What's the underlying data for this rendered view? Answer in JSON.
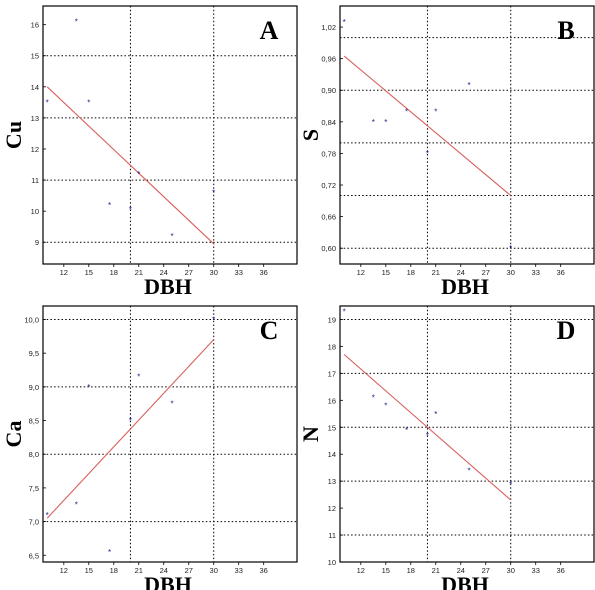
{
  "chart_data": [
    {
      "type": "scatter",
      "panel_label": "A",
      "xlabel": "DBH",
      "ylabel": "Cu",
      "xlim": [
        9.5,
        40
      ],
      "ylim": [
        8.3,
        16.6
      ],
      "x_ticks": [
        12,
        15,
        18,
        21,
        24,
        27,
        30,
        33,
        36
      ],
      "x_tick_labels": [
        "12",
        "15",
        "18",
        "21",
        "24",
        "27",
        "30",
        "33",
        "36"
      ],
      "y_ticks": [
        9,
        10,
        11,
        12,
        13,
        14,
        15,
        16
      ],
      "y_tick_labels": [
        "9",
        "10",
        "11",
        "12",
        "13",
        "14",
        "15",
        "16"
      ],
      "x_grid": [
        20,
        30
      ],
      "y_grid": [
        9,
        11,
        13,
        15
      ],
      "points": [
        {
          "x": 10,
          "y": 13.5
        },
        {
          "x": 13.5,
          "y": 16.1
        },
        {
          "x": 15,
          "y": 13.5
        },
        {
          "x": 17.5,
          "y": 10.2
        },
        {
          "x": 20,
          "y": 10.05
        },
        {
          "x": 21,
          "y": 11.2
        },
        {
          "x": 25,
          "y": 9.2
        },
        {
          "x": 30,
          "y": 10.6
        }
      ],
      "fit_line": [
        {
          "x": 10,
          "y": 14
        },
        {
          "x": 30,
          "y": 8.95
        }
      ]
    },
    {
      "type": "scatter",
      "panel_label": "B",
      "xlabel": "DBH",
      "ylabel": "S",
      "xlim": [
        9.5,
        40
      ],
      "ylim": [
        0.57,
        1.06
      ],
      "x_ticks": [
        12,
        15,
        18,
        21,
        24,
        27,
        30,
        33,
        36
      ],
      "x_tick_labels": [
        "12",
        "15",
        "18",
        "21",
        "24",
        "27",
        "30",
        "33",
        "36"
      ],
      "y_ticks": [
        0.6,
        0.66,
        0.72,
        0.78,
        0.84,
        0.9,
        0.96,
        1.02
      ],
      "y_tick_labels": [
        "0,60",
        "0,66",
        "0,72",
        "0,78",
        "0,84",
        "0,90",
        "0,96",
        "1,02"
      ],
      "x_grid": [
        20,
        30
      ],
      "y_grid": [
        0.6,
        0.7,
        0.8,
        0.9,
        1.0
      ],
      "points": [
        {
          "x": 10,
          "y": 1.03
        },
        {
          "x": 13.5,
          "y": 0.84
        },
        {
          "x": 15,
          "y": 0.84
        },
        {
          "x": 17.5,
          "y": 0.86
        },
        {
          "x": 20,
          "y": 0.78
        },
        {
          "x": 21,
          "y": 0.86
        },
        {
          "x": 25,
          "y": 0.91
        },
        {
          "x": 30,
          "y": 0.6
        }
      ],
      "fit_line": [
        {
          "x": 10,
          "y": 0.965
        },
        {
          "x": 30,
          "y": 0.7
        }
      ]
    },
    {
      "type": "scatter",
      "panel_label": "C",
      "xlabel": "DBH",
      "ylabel": "Ca",
      "xlim": [
        9.5,
        40
      ],
      "ylim": [
        6.4,
        10.2
      ],
      "x_ticks": [
        12,
        15,
        18,
        21,
        24,
        27,
        30,
        33,
        36
      ],
      "x_tick_labels": [
        "12",
        "15",
        "18",
        "21",
        "24",
        "27",
        "30",
        "33",
        "36"
      ],
      "y_ticks": [
        6.5,
        7,
        7.5,
        8,
        8.5,
        9,
        9.5,
        10
      ],
      "y_tick_labels": [
        "6,5",
        "7,0",
        "7,5",
        "8,0",
        "8,5",
        "9,0",
        "9,5",
        "10,0"
      ],
      "x_grid": [
        20,
        30
      ],
      "y_grid": [
        7,
        8,
        9,
        10
      ],
      "points": [
        {
          "x": 10,
          "y": 7.1
        },
        {
          "x": 13.5,
          "y": 7.25
        },
        {
          "x": 15,
          "y": 9.0
        },
        {
          "x": 17.5,
          "y": 6.55
        },
        {
          "x": 20,
          "y": 8.5
        },
        {
          "x": 21,
          "y": 9.15
        },
        {
          "x": 25,
          "y": 8.75
        },
        {
          "x": 30,
          "y": 10.0
        }
      ],
      "fit_line": [
        {
          "x": 10,
          "y": 7.05
        },
        {
          "x": 30,
          "y": 9.7
        }
      ]
    },
    {
      "type": "scatter",
      "panel_label": "D",
      "xlabel": "DBH",
      "ylabel": "N",
      "xlim": [
        9.5,
        40
      ],
      "ylim": [
        10,
        19.5
      ],
      "x_ticks": [
        12,
        15,
        18,
        21,
        24,
        27,
        30,
        33,
        36
      ],
      "x_tick_labels": [
        "12",
        "15",
        "18",
        "21",
        "24",
        "27",
        "30",
        "33",
        "36"
      ],
      "y_ticks": [
        10,
        11,
        12,
        13,
        14,
        15,
        16,
        17,
        18,
        19
      ],
      "y_tick_labels": [
        "10",
        "11",
        "12",
        "13",
        "14",
        "15",
        "16",
        "17",
        "18",
        "19"
      ],
      "x_grid": [
        20,
        30
      ],
      "y_grid": [
        11,
        13,
        15,
        17,
        19
      ],
      "points": [
        {
          "x": 10,
          "y": 19.3
        },
        {
          "x": 13.5,
          "y": 16.1
        },
        {
          "x": 15,
          "y": 15.8
        },
        {
          "x": 17.5,
          "y": 14.9
        },
        {
          "x": 20,
          "y": 14.7
        },
        {
          "x": 21,
          "y": 15.5
        },
        {
          "x": 25,
          "y": 13.4
        },
        {
          "x": 30,
          "y": 12.9
        }
      ],
      "fit_line": [
        {
          "x": 10,
          "y": 17.7
        },
        {
          "x": 30,
          "y": 12.3
        }
      ]
    }
  ]
}
